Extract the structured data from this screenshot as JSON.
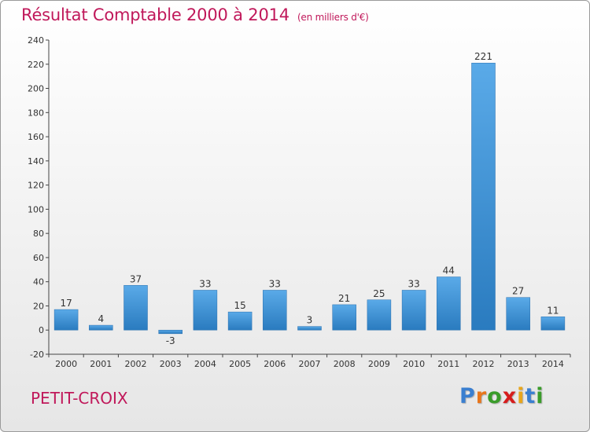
{
  "title": "Résultat Comptable 2000 à 2014",
  "unit": "(en milliers d'€)",
  "place": "PETIT-CROIX",
  "logo": {
    "letters": [
      "P",
      "r",
      "o",
      "x",
      "i",
      "t",
      "i"
    ],
    "colors": [
      "#3a7fd0",
      "#e8761c",
      "#3a9c2a",
      "#d61c1c",
      "#e8a61c",
      "#3a7fd0",
      "#3a9c2a"
    ]
  },
  "colors": {
    "accent": "#c0185a",
    "bar_light": "#5aaae8",
    "bar_dark": "#2a7bbf"
  },
  "chart_data": {
    "type": "bar",
    "title": "Résultat Comptable 2000 à 2014",
    "xlabel": "",
    "ylabel": "",
    "categories": [
      "2000",
      "2001",
      "2002",
      "2003",
      "2004",
      "2005",
      "2006",
      "2007",
      "2008",
      "2009",
      "2010",
      "2011",
      "2012",
      "2013",
      "2014"
    ],
    "values": [
      17,
      4,
      37,
      -3,
      33,
      15,
      33,
      3,
      21,
      25,
      33,
      44,
      221,
      27,
      11
    ],
    "ylim": [
      -20,
      240
    ],
    "yticks": [
      -20,
      0,
      20,
      40,
      60,
      80,
      100,
      120,
      140,
      160,
      180,
      200,
      220,
      240
    ],
    "grid": false
  }
}
